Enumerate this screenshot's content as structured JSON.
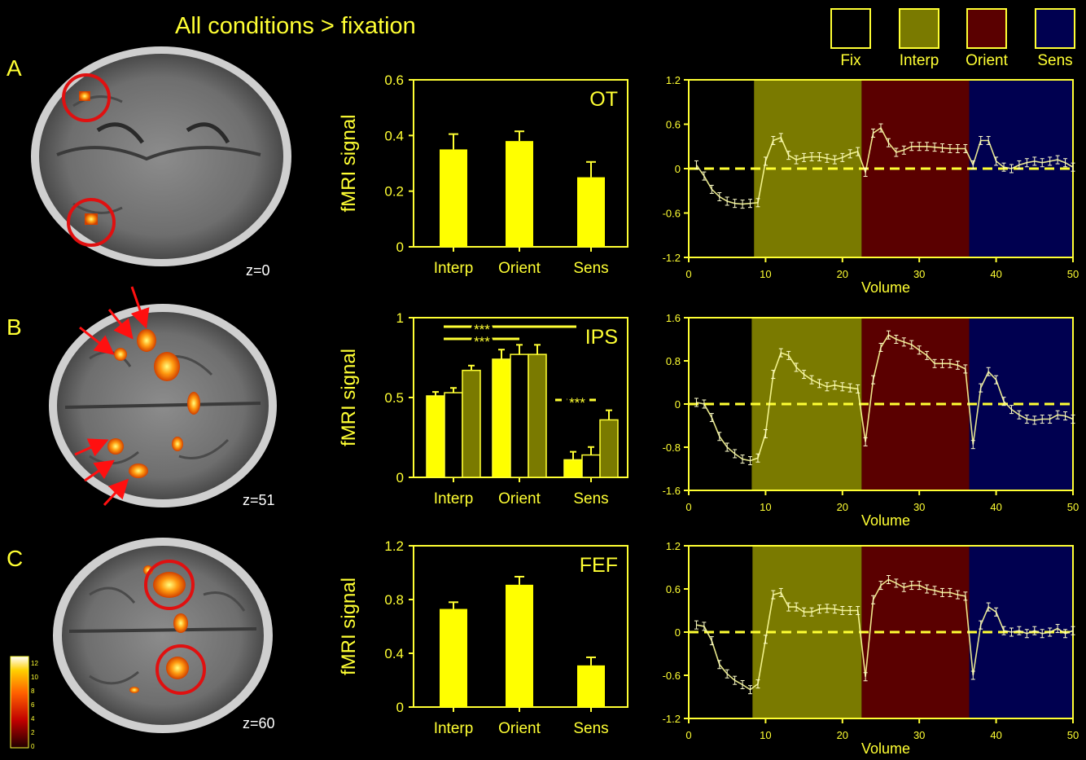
{
  "title": "All conditions > fixation",
  "legend": [
    {
      "label": "Fix",
      "color": "#000000"
    },
    {
      "label": "Interp",
      "color": "#7a7a00"
    },
    {
      "label": "Orient",
      "color": "#5a0000"
    },
    {
      "label": "Sens",
      "color": "#000050"
    }
  ],
  "panels": [
    {
      "letter": "A",
      "slice_label": "z=0"
    },
    {
      "letter": "B",
      "slice_label": "z=51"
    },
    {
      "letter": "C",
      "slice_label": "z=60"
    }
  ],
  "colorbar_ticks": [
    "12",
    "10",
    "8",
    "6",
    "4",
    "2",
    "0"
  ],
  "chart_data": [
    {
      "type": "bar",
      "region": "OT",
      "ylabel": "fMRI signal",
      "categories": [
        "Interp",
        "Orient",
        "Sens"
      ],
      "values": [
        0.35,
        0.38,
        0.25
      ],
      "errors": [
        0.055,
        0.035,
        0.055
      ],
      "ylim": [
        0,
        0.6
      ],
      "yticks": [
        "0",
        "0.2",
        "0.4",
        "0.6"
      ],
      "colors": [
        "#ffff00"
      ]
    },
    {
      "type": "bar",
      "region": "IPS",
      "ylabel": "fMRI signal",
      "categories": [
        "Interp",
        "Orient",
        "Sens"
      ],
      "series": [
        {
          "values": [
            0.51,
            0.74,
            0.11
          ],
          "errors": [
            0.025,
            0.06,
            0.05
          ],
          "color": "#ffff00"
        },
        {
          "values": [
            0.53,
            0.77,
            0.14
          ],
          "errors": [
            0.03,
            0.06,
            0.05
          ],
          "color": "#000000"
        },
        {
          "values": [
            0.67,
            0.77,
            0.36
          ],
          "errors": [
            0.03,
            0.06,
            0.06
          ],
          "color": "#7a7a00"
        }
      ],
      "ylim": [
        0,
        1
      ],
      "yticks": [
        "0",
        "0.5",
        "1"
      ],
      "significance": [
        "***",
        "***",
        "***"
      ]
    },
    {
      "type": "bar",
      "region": "FEF",
      "ylabel": "fMRI signal",
      "categories": [
        "Interp",
        "Orient",
        "Sens"
      ],
      "values": [
        0.73,
        0.91,
        0.31
      ],
      "errors": [
        0.05,
        0.06,
        0.06
      ],
      "ylim": [
        0,
        1.2
      ],
      "yticks": [
        "0",
        "0.4",
        "0.8",
        "1.2"
      ],
      "colors": [
        "#ffff00"
      ]
    },
    {
      "type": "line",
      "xlabel": "Volume",
      "xlim": [
        0,
        50
      ],
      "xticks": [
        "0",
        "10",
        "20",
        "30",
        "40",
        "50"
      ],
      "ylim": [
        -1.2,
        1.2
      ],
      "yticks": [
        "-1.2",
        "-0.6",
        "0",
        "0.6",
        "1.2"
      ],
      "condition_blocks": [
        [
          0,
          8.5
        ],
        [
          8.5,
          22.5
        ],
        [
          22.5,
          36.5
        ],
        [
          36.5,
          50
        ]
      ],
      "x": [
        1,
        2,
        3,
        4,
        5,
        6,
        7,
        8,
        9,
        10,
        11,
        12,
        13,
        14,
        15,
        16,
        17,
        18,
        19,
        20,
        21,
        22,
        23,
        24,
        25,
        26,
        27,
        28,
        29,
        30,
        31,
        32,
        33,
        34,
        35,
        36,
        37,
        38,
        39,
        40,
        41,
        42,
        43,
        44,
        45,
        46,
        47,
        48,
        49,
        50
      ],
      "values": [
        0.05,
        -0.1,
        -0.28,
        -0.38,
        -0.44,
        -0.47,
        -0.48,
        -0.47,
        -0.46,
        0.1,
        0.38,
        0.42,
        0.18,
        0.12,
        0.15,
        0.16,
        0.16,
        0.14,
        0.12,
        0.15,
        0.2,
        0.23,
        -0.05,
        0.48,
        0.55,
        0.35,
        0.22,
        0.25,
        0.3,
        0.3,
        0.3,
        0.29,
        0.28,
        0.27,
        0.27,
        0.27,
        0.05,
        0.38,
        0.38,
        0.1,
        0.02,
        0.0,
        0.05,
        0.08,
        0.1,
        0.08,
        0.1,
        0.12,
        0.08,
        0.02
      ]
    },
    {
      "type": "line",
      "xlabel": "Volume",
      "xlim": [
        0,
        50
      ],
      "xticks": [
        "0",
        "10",
        "20",
        "30",
        "40",
        "50"
      ],
      "ylim": [
        -1.6,
        1.6
      ],
      "yticks": [
        "-1.6",
        "-0.8",
        "0",
        "0.8",
        "1.6"
      ],
      "condition_blocks": [
        [
          0,
          8.2
        ],
        [
          8.2,
          22.5
        ],
        [
          22.5,
          36.5
        ],
        [
          36.5,
          50
        ]
      ],
      "x": [
        1,
        2,
        3,
        4,
        5,
        6,
        7,
        8,
        9,
        10,
        11,
        12,
        13,
        14,
        15,
        16,
        17,
        18,
        19,
        20,
        21,
        22,
        23,
        24,
        25,
        26,
        27,
        28,
        29,
        30,
        31,
        32,
        33,
        34,
        35,
        36,
        37,
        38,
        39,
        40,
        41,
        42,
        43,
        44,
        45,
        46,
        47,
        48,
        49,
        50
      ],
      "values": [
        0.03,
        0.0,
        -0.25,
        -0.6,
        -0.8,
        -0.92,
        -1.02,
        -1.05,
        -1.0,
        -0.55,
        0.55,
        0.95,
        0.9,
        0.68,
        0.55,
        0.45,
        0.38,
        0.32,
        0.35,
        0.32,
        0.3,
        0.28,
        -0.7,
        0.45,
        1.05,
        1.28,
        1.2,
        1.15,
        1.1,
        1.0,
        0.9,
        0.75,
        0.75,
        0.75,
        0.72,
        0.65,
        -0.75,
        0.3,
        0.6,
        0.45,
        0.05,
        -0.1,
        -0.2,
        -0.28,
        -0.3,
        -0.28,
        -0.28,
        -0.2,
        -0.22,
        -0.28
      ]
    },
    {
      "type": "line",
      "xlabel": "Volume",
      "xlim": [
        0,
        50
      ],
      "xticks": [
        "0",
        "10",
        "20",
        "30",
        "40",
        "50"
      ],
      "ylim": [
        -1.2,
        1.2
      ],
      "yticks": [
        "-1.2",
        "-0.6",
        "0",
        "0.6",
        "1.2"
      ],
      "condition_blocks": [
        [
          0,
          8.3
        ],
        [
          8.3,
          22.5
        ],
        [
          22.5,
          36.5
        ],
        [
          36.5,
          50
        ]
      ],
      "x": [
        1,
        2,
        3,
        4,
        5,
        6,
        7,
        8,
        9,
        10,
        11,
        12,
        13,
        14,
        15,
        16,
        17,
        18,
        19,
        20,
        21,
        22,
        23,
        24,
        25,
        26,
        27,
        28,
        29,
        30,
        31,
        32,
        33,
        34,
        35,
        36,
        37,
        38,
        39,
        40,
        41,
        42,
        43,
        44,
        45,
        46,
        47,
        48,
        49,
        50
      ],
      "values": [
        0.1,
        0.08,
        -0.12,
        -0.45,
        -0.58,
        -0.67,
        -0.73,
        -0.8,
        -0.72,
        -0.1,
        0.52,
        0.55,
        0.35,
        0.35,
        0.28,
        0.28,
        0.32,
        0.33,
        0.32,
        0.3,
        0.3,
        0.3,
        -0.62,
        0.45,
        0.65,
        0.73,
        0.68,
        0.62,
        0.65,
        0.65,
        0.6,
        0.58,
        0.55,
        0.55,
        0.52,
        0.5,
        -0.6,
        0.1,
        0.35,
        0.28,
        0.02,
        0.0,
        0.02,
        -0.02,
        0.02,
        -0.02,
        0.0,
        0.05,
        -0.02,
        0.02
      ]
    }
  ]
}
